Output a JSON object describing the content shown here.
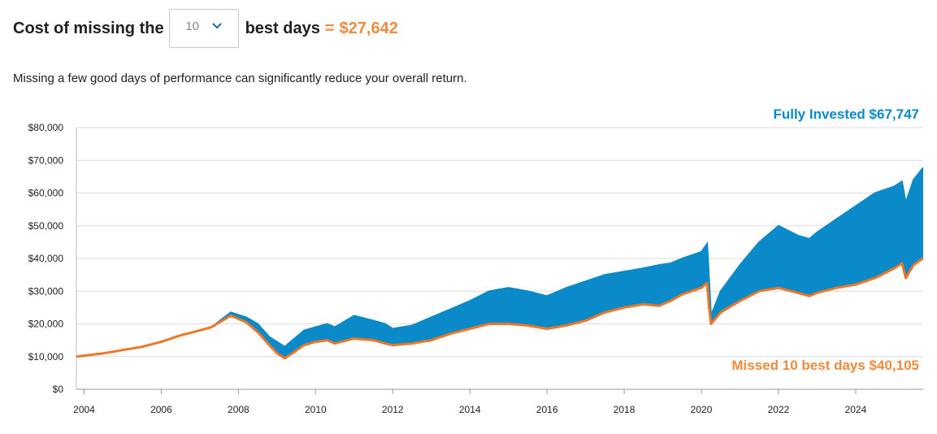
{
  "header": {
    "prefix": "Cost of missing the",
    "selected_days": "10",
    "suffix": "best days",
    "equals": "=",
    "cost": "$27,642"
  },
  "subtitle": "Missing a few good days of performance can significantly reduce your overall return.",
  "colors": {
    "fully": "#0a8ac9",
    "missed": "#ee7624",
    "accent": "#f08a3c"
  },
  "chart_data": {
    "type": "area",
    "title": "",
    "xlabel": "",
    "ylabel": "",
    "xlim": [
      2003.8,
      2025.75
    ],
    "ylim": [
      0,
      80000
    ],
    "x_ticks": [
      2004,
      2006,
      2008,
      2010,
      2012,
      2014,
      2016,
      2018,
      2020,
      2022,
      2024
    ],
    "y_ticks": [
      0,
      10000,
      20000,
      30000,
      40000,
      50000,
      60000,
      70000,
      80000
    ],
    "y_tick_labels": [
      "$0",
      "$10,000",
      "$20,000",
      "$30,000",
      "$40,000",
      "$50,000",
      "$60,000",
      "$70,000",
      "$80,000"
    ],
    "legend_labels": {
      "fully": "Fully Invested $67,747",
      "missed": "Missed 10 best days $40,105"
    },
    "series": [
      {
        "name": "Fully Invested",
        "x": [
          2003.8,
          2004.5,
          2005,
          2005.5,
          2006,
          2006.5,
          2007,
          2007.3,
          2007.8,
          2008.2,
          2008.5,
          2008.8,
          2009.0,
          2009.2,
          2009.4,
          2009.7,
          2010,
          2010.3,
          2010.5,
          2011,
          2011.5,
          2011.8,
          2012,
          2012.5,
          2013,
          2013.5,
          2014,
          2014.5,
          2015,
          2015.5,
          2016,
          2016.5,
          2017,
          2017.5,
          2018,
          2018.5,
          2018.9,
          2019.2,
          2019.5,
          2020.0,
          2020.15,
          2020.2,
          2020.25,
          2020.5,
          2021,
          2021.5,
          2022,
          2022.5,
          2022.8,
          2023,
          2023.5,
          2024,
          2024.5,
          2025,
          2025.2,
          2025.3,
          2025.5,
          2025.75
        ],
        "values": [
          10000,
          11000,
          12000,
          13000,
          14500,
          16500,
          18000,
          19000,
          23500,
          22000,
          20000,
          16000,
          14500,
          13000,
          15000,
          18000,
          19000,
          20000,
          19000,
          22500,
          21000,
          20000,
          18500,
          19500,
          22000,
          24500,
          27000,
          30000,
          31000,
          30000,
          28500,
          31000,
          33000,
          35000,
          36000,
          37000,
          38000,
          38500,
          40000,
          42000,
          44500,
          34000,
          22500,
          30000,
          38000,
          45000,
          50000,
          47000,
          46000,
          48000,
          52000,
          56000,
          60000,
          62000,
          63500,
          57000,
          64000,
          67747
        ]
      },
      {
        "name": "Missed 10 best days",
        "x": [
          2003.8,
          2004.5,
          2005,
          2005.5,
          2006,
          2006.5,
          2007,
          2007.3,
          2007.8,
          2008.2,
          2008.5,
          2008.8,
          2009.0,
          2009.2,
          2009.4,
          2009.7,
          2010,
          2010.3,
          2010.5,
          2011,
          2011.5,
          2011.8,
          2012,
          2012.5,
          2013,
          2013.5,
          2014,
          2014.5,
          2015,
          2015.5,
          2016,
          2016.5,
          2017,
          2017.5,
          2018,
          2018.5,
          2018.9,
          2019.2,
          2019.5,
          2020.0,
          2020.15,
          2020.2,
          2020.25,
          2020.5,
          2021,
          2021.5,
          2022,
          2022.5,
          2022.8,
          2023,
          2023.5,
          2024,
          2024.5,
          2025,
          2025.2,
          2025.3,
          2025.5,
          2025.75
        ],
        "values": [
          10000,
          11000,
          12000,
          13000,
          14500,
          16500,
          18000,
          19000,
          22500,
          20500,
          17500,
          13500,
          11000,
          9500,
          11000,
          13500,
          14500,
          15000,
          14000,
          15500,
          15000,
          14000,
          13500,
          14000,
          15000,
          17000,
          18500,
          20000,
          20000,
          19500,
          18500,
          19500,
          21000,
          23500,
          25000,
          26000,
          25500,
          27000,
          29000,
          31000,
          32500,
          25000,
          20000,
          23500,
          27000,
          30000,
          31000,
          29500,
          28500,
          29500,
          31000,
          32000,
          34000,
          37000,
          38500,
          34000,
          38000,
          40105
        ]
      }
    ]
  }
}
